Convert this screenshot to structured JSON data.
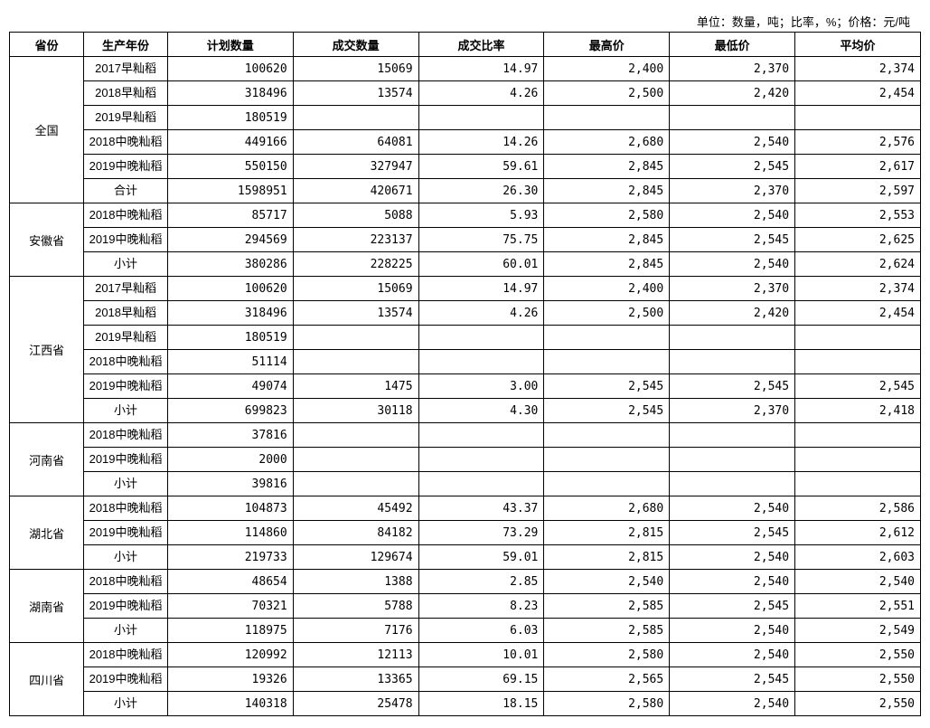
{
  "unit_line": "单位：数量，吨；比率，%；价格：元/吨",
  "headers": [
    "省份",
    "生产年份",
    "计划数量",
    "成交数量",
    "成交比率",
    "最高价",
    "最低价",
    "平均价"
  ],
  "groups": [
    {
      "province": "全国",
      "rows": [
        {
          "year": "2017早籼稻",
          "plan": "100620",
          "deal": "15069",
          "rate": "14.97",
          "high": "2,400",
          "low": "2,370",
          "avg": "2,374"
        },
        {
          "year": "2018早籼稻",
          "plan": "318496",
          "deal": "13574",
          "rate": "4.26",
          "high": "2,500",
          "low": "2,420",
          "avg": "2,454"
        },
        {
          "year": "2019早籼稻",
          "plan": "180519",
          "deal": "",
          "rate": "",
          "high": "",
          "low": "",
          "avg": ""
        },
        {
          "year": "2018中晚籼稻",
          "plan": "449166",
          "deal": "64081",
          "rate": "14.26",
          "high": "2,680",
          "low": "2,540",
          "avg": "2,576"
        },
        {
          "year": "2019中晚籼稻",
          "plan": "550150",
          "deal": "327947",
          "rate": "59.61",
          "high": "2,845",
          "low": "2,545",
          "avg": "2,617"
        },
        {
          "year": "合计",
          "plan": "1598951",
          "deal": "420671",
          "rate": "26.30",
          "high": "2,845",
          "low": "2,370",
          "avg": "2,597"
        }
      ]
    },
    {
      "province": "安徽省",
      "rows": [
        {
          "year": "2018中晚籼稻",
          "plan": "85717",
          "deal": "5088",
          "rate": "5.93",
          "high": "2,580",
          "low": "2,540",
          "avg": "2,553"
        },
        {
          "year": "2019中晚籼稻",
          "plan": "294569",
          "deal": "223137",
          "rate": "75.75",
          "high": "2,845",
          "low": "2,545",
          "avg": "2,625"
        },
        {
          "year": "小计",
          "plan": "380286",
          "deal": "228225",
          "rate": "60.01",
          "high": "2,845",
          "low": "2,540",
          "avg": "2,624"
        }
      ]
    },
    {
      "province": "江西省",
      "rows": [
        {
          "year": "2017早籼稻",
          "plan": "100620",
          "deal": "15069",
          "rate": "14.97",
          "high": "2,400",
          "low": "2,370",
          "avg": "2,374"
        },
        {
          "year": "2018早籼稻",
          "plan": "318496",
          "deal": "13574",
          "rate": "4.26",
          "high": "2,500",
          "low": "2,420",
          "avg": "2,454"
        },
        {
          "year": "2019早籼稻",
          "plan": "180519",
          "deal": "",
          "rate": "",
          "high": "",
          "low": "",
          "avg": ""
        },
        {
          "year": "2018中晚籼稻",
          "plan": "51114",
          "deal": "",
          "rate": "",
          "high": "",
          "low": "",
          "avg": ""
        },
        {
          "year": "2019中晚籼稻",
          "plan": "49074",
          "deal": "1475",
          "rate": "3.00",
          "high": "2,545",
          "low": "2,545",
          "avg": "2,545"
        },
        {
          "year": "小计",
          "plan": "699823",
          "deal": "30118",
          "rate": "4.30",
          "high": "2,545",
          "low": "2,370",
          "avg": "2,418"
        }
      ]
    },
    {
      "province": "河南省",
      "rows": [
        {
          "year": "2018中晚籼稻",
          "plan": "37816",
          "deal": "",
          "rate": "",
          "high": "",
          "low": "",
          "avg": ""
        },
        {
          "year": "2019中晚籼稻",
          "plan": "2000",
          "deal": "",
          "rate": "",
          "high": "",
          "low": "",
          "avg": ""
        },
        {
          "year": "小计",
          "plan": "39816",
          "deal": "",
          "rate": "",
          "high": "",
          "low": "",
          "avg": ""
        }
      ]
    },
    {
      "province": "湖北省",
      "rows": [
        {
          "year": "2018中晚籼稻",
          "plan": "104873",
          "deal": "45492",
          "rate": "43.37",
          "high": "2,680",
          "low": "2,540",
          "avg": "2,586"
        },
        {
          "year": "2019中晚籼稻",
          "plan": "114860",
          "deal": "84182",
          "rate": "73.29",
          "high": "2,815",
          "low": "2,545",
          "avg": "2,612"
        },
        {
          "year": "小计",
          "plan": "219733",
          "deal": "129674",
          "rate": "59.01",
          "high": "2,815",
          "low": "2,540",
          "avg": "2,603"
        }
      ]
    },
    {
      "province": "湖南省",
      "rows": [
        {
          "year": "2018中晚籼稻",
          "plan": "48654",
          "deal": "1388",
          "rate": "2.85",
          "high": "2,540",
          "low": "2,540",
          "avg": "2,540"
        },
        {
          "year": "2019中晚籼稻",
          "plan": "70321",
          "deal": "5788",
          "rate": "8.23",
          "high": "2,585",
          "low": "2,545",
          "avg": "2,551"
        },
        {
          "year": "小计",
          "plan": "118975",
          "deal": "7176",
          "rate": "6.03",
          "high": "2,585",
          "low": "2,540",
          "avg": "2,549"
        }
      ]
    },
    {
      "province": "四川省",
      "rows": [
        {
          "year": "2018中晚籼稻",
          "plan": "120992",
          "deal": "12113",
          "rate": "10.01",
          "high": "2,580",
          "low": "2,540",
          "avg": "2,550"
        },
        {
          "year": "2019中晚籼稻",
          "plan": "19326",
          "deal": "13365",
          "rate": "69.15",
          "high": "2,565",
          "low": "2,545",
          "avg": "2,550"
        },
        {
          "year": "小计",
          "plan": "140318",
          "deal": "25478",
          "rate": "18.15",
          "high": "2,580",
          "low": "2,540",
          "avg": "2,550"
        }
      ]
    }
  ]
}
